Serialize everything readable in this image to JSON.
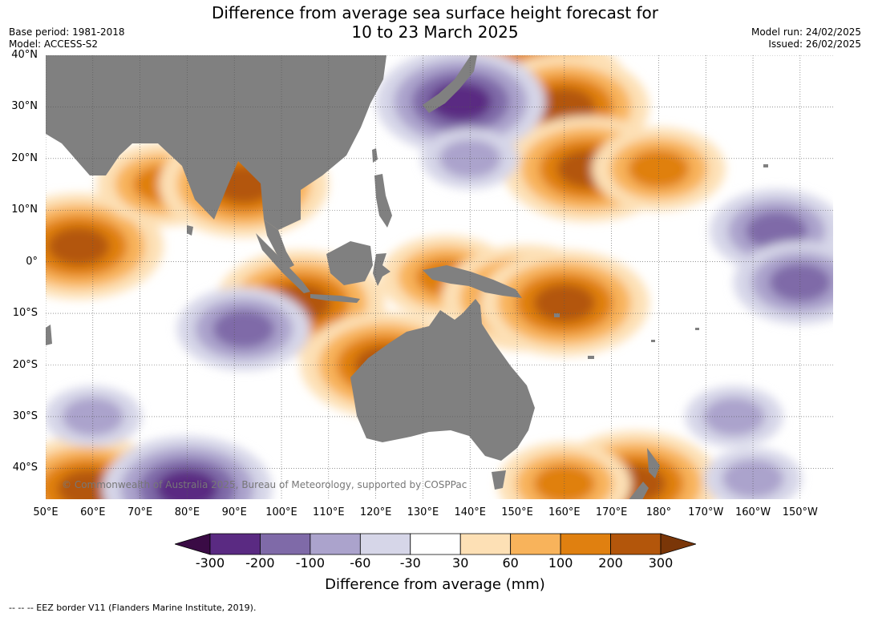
{
  "title": {
    "line1": "Difference from average sea surface height forecast for",
    "line2": "10 to 23 March 2025"
  },
  "meta_left": {
    "base_period": "Base period: 1981-2018",
    "model": "Model: ACCESS-S2"
  },
  "meta_right": {
    "model_run": "Model run: 24/02/2025",
    "issued": "Issued: 26/02/2025"
  },
  "map": {
    "extent": {
      "lon_min": 50,
      "lon_max": 217,
      "lat_min": -46,
      "lat_max": 40
    },
    "land_color": "#808080",
    "lat_labels": [
      {
        "lat": 40,
        "text": "40°N"
      },
      {
        "lat": 30,
        "text": "30°N"
      },
      {
        "lat": 20,
        "text": "20°N"
      },
      {
        "lat": 10,
        "text": "10°N"
      },
      {
        "lat": 0,
        "text": "0°"
      },
      {
        "lat": -10,
        "text": "10°S"
      },
      {
        "lat": -20,
        "text": "20°S"
      },
      {
        "lat": -30,
        "text": "30°S"
      },
      {
        "lat": -40,
        "text": "40°S"
      }
    ],
    "lon_labels": [
      {
        "lon": 50,
        "text": "50°E"
      },
      {
        "lon": 60,
        "text": "60°E"
      },
      {
        "lon": 70,
        "text": "70°E"
      },
      {
        "lon": 80,
        "text": "80°E"
      },
      {
        "lon": 90,
        "text": "90°E"
      },
      {
        "lon": 100,
        "text": "100°E"
      },
      {
        "lon": 110,
        "text": "110°E"
      },
      {
        "lon": 120,
        "text": "120°E"
      },
      {
        "lon": 130,
        "text": "130°E"
      },
      {
        "lon": 140,
        "text": "140°E"
      },
      {
        "lon": 150,
        "text": "150°E"
      },
      {
        "lon": 160,
        "text": "160°E"
      },
      {
        "lon": 170,
        "text": "170°E"
      },
      {
        "lon": 180,
        "text": "180°"
      },
      {
        "lon": 190,
        "text": "170°W"
      },
      {
        "lon": 200,
        "text": "160°W"
      },
      {
        "lon": 210,
        "text": "150°W"
      }
    ],
    "watermark": "© Commonwealth of Australia 2025, Bureau of Meteorology, supported by COSPPac",
    "anomaly_regions": [
      {
        "lon": 57,
        "lat": 3,
        "level": 4
      },
      {
        "lon": 75,
        "lat": 15,
        "level": 3
      },
      {
        "lon": 92,
        "lat": 15,
        "level": 4
      },
      {
        "lon": 104,
        "lat": -8,
        "level": 4
      },
      {
        "lon": 122,
        "lat": -20,
        "level": 4
      },
      {
        "lon": 135,
        "lat": -3,
        "level": 3
      },
      {
        "lon": 152,
        "lat": -7,
        "level": 4
      },
      {
        "lon": 160,
        "lat": -8,
        "level": 4
      },
      {
        "lon": 152,
        "lat": 33,
        "level": 5
      },
      {
        "lon": 160,
        "lat": 30,
        "level": 4
      },
      {
        "lon": 165,
        "lat": 18,
        "level": 4
      },
      {
        "lon": 180,
        "lat": 18,
        "level": 3
      },
      {
        "lon": 175,
        "lat": -43,
        "level": 4
      },
      {
        "lon": 160,
        "lat": -43,
        "level": 3
      },
      {
        "lon": 59,
        "lat": -44,
        "level": 4
      },
      {
        "lon": 138,
        "lat": 31,
        "level": -4
      },
      {
        "lon": 92,
        "lat": -13,
        "level": -3
      },
      {
        "lon": 80,
        "lat": -44,
        "level": -4
      },
      {
        "lon": 205,
        "lat": 6,
        "level": -3
      },
      {
        "lon": 210,
        "lat": -4,
        "level": -3
      },
      {
        "lon": 196,
        "lat": -30,
        "level": -2
      },
      {
        "lon": 200,
        "lat": -42,
        "level": -2
      },
      {
        "lon": 60,
        "lat": -30,
        "level": -2
      },
      {
        "lon": 140,
        "lat": 20,
        "level": -2
      }
    ]
  },
  "colorbar": {
    "title": "Difference from average (mm)",
    "colors": [
      "#3a0b45",
      "#5a2a82",
      "#7f6aa8",
      "#aba3cc",
      "#d6d6e8",
      "#ffffff",
      "#fde0b5",
      "#f8b35b",
      "#e08010",
      "#b3560b",
      "#7a3608"
    ],
    "tick_labels": [
      "-300",
      "-200",
      "-100",
      "-60",
      "-30",
      "30",
      "60",
      "100",
      "200",
      "300"
    ]
  },
  "footer": "--  --  -- EEZ border V11 (Flanders Marine Institute, 2019)."
}
